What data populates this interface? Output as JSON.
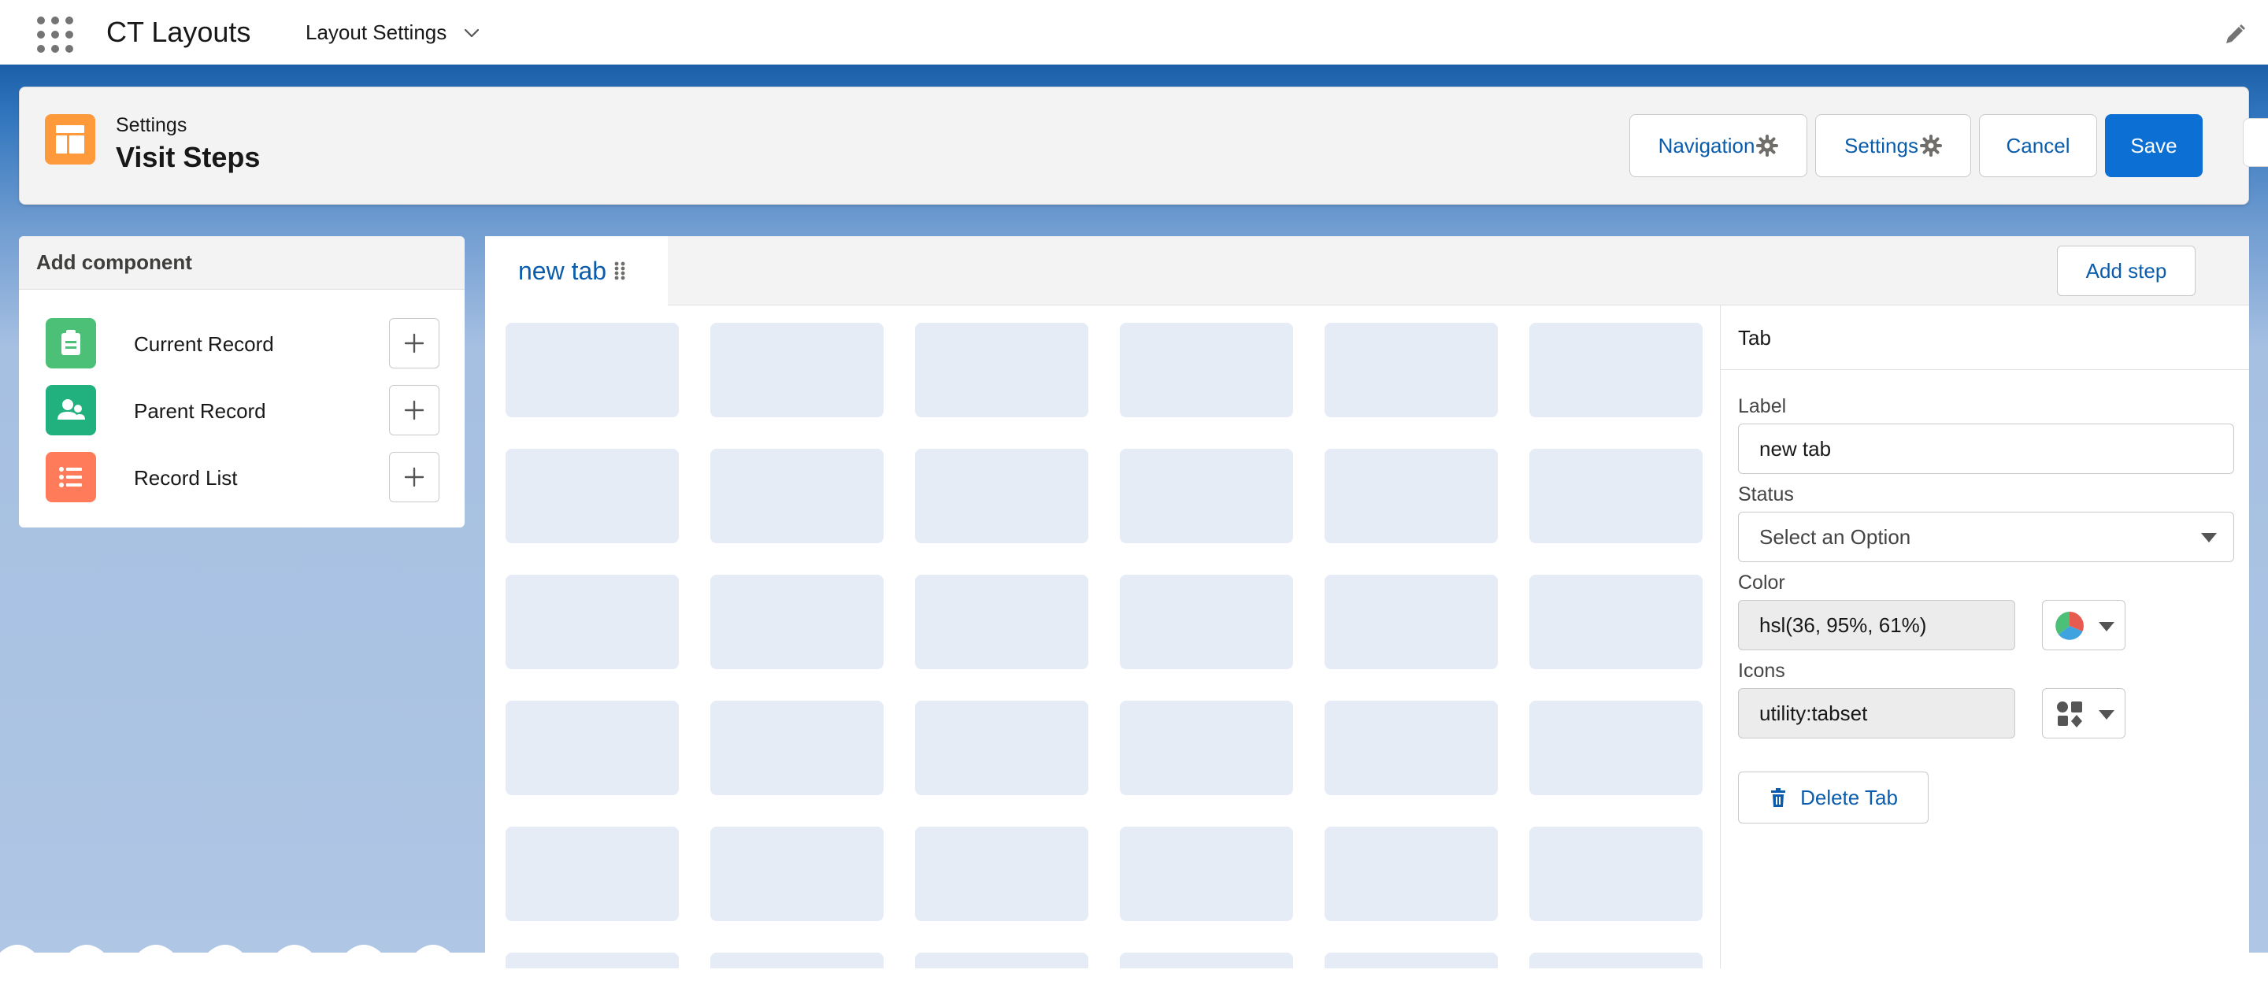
{
  "global_header": {
    "app_name": "CT Layouts",
    "nav_item": "Layout Settings"
  },
  "page_header": {
    "subtitle": "Settings",
    "title": "Visit Steps",
    "buttons": {
      "navigation": "Navigation",
      "settings": "Settings",
      "cancel": "Cancel",
      "save": "Save"
    }
  },
  "add_component": {
    "title": "Add component",
    "items": [
      {
        "label": "Current Record",
        "icon": "clipboard-icon",
        "color": "#4bc076"
      },
      {
        "label": "Parent Record",
        "icon": "user-group-icon",
        "color": "#21b17f"
      },
      {
        "label": "Record List",
        "icon": "list-icon",
        "color": "#ff7b59"
      }
    ]
  },
  "canvas": {
    "tabs": [
      {
        "label": "new tab",
        "active": true
      }
    ],
    "add_step_label": "Add step"
  },
  "properties": {
    "title": "Tab",
    "label_field": {
      "label": "Label",
      "value": "new tab"
    },
    "status_field": {
      "label": "Status",
      "placeholder": "Select an Option"
    },
    "color_field": {
      "label": "Color",
      "value": "hsl(36, 95%, 61%)"
    },
    "icons_field": {
      "label": "Icons",
      "value": "utility:tabset"
    },
    "delete_label": "Delete Tab"
  },
  "colors": {
    "brand_blue": "#0b6fd4",
    "link_blue": "#0b5cab",
    "header_icon": "#ff9a3c",
    "placeholder_cell": "#e5ecf6"
  }
}
